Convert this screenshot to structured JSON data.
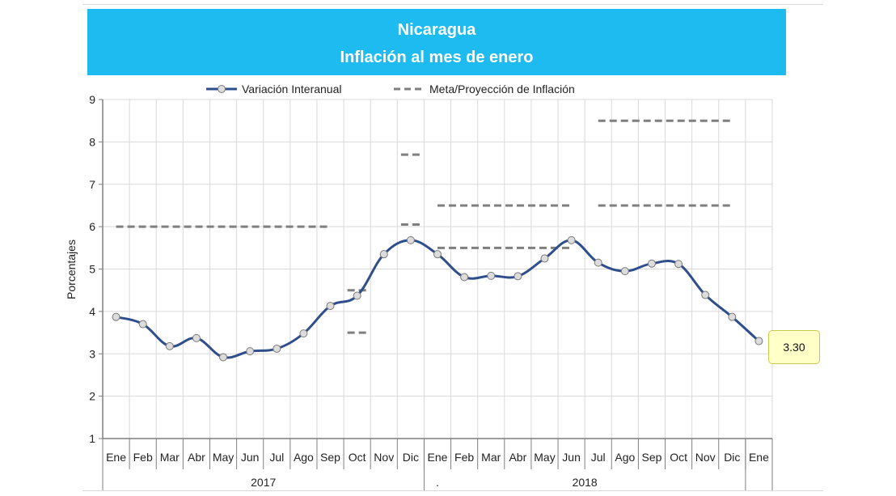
{
  "header": {
    "title": "Nicaragua",
    "subtitle": "Inflación al mes de enero"
  },
  "colors": {
    "title_bg": "#1ebbf0",
    "series": "#2f4e8c",
    "target": "#7f7f7f",
    "callout_bg": "#ffffc8"
  },
  "chart_data": {
    "type": "line",
    "ylabel": "Porcentajes",
    "ylim": [
      1,
      9
    ],
    "yticks": [
      1,
      2,
      3,
      4,
      5,
      6,
      7,
      8,
      9
    ],
    "grid": true,
    "legend_position": "top",
    "categories": [
      "Ene",
      "Feb",
      "Mar",
      "Abr",
      "May",
      "Jun",
      "Jul",
      "Ago",
      "Sep",
      "Oct",
      "Nov",
      "Dic",
      "Ene",
      "Feb",
      "Mar",
      "Abr",
      "May",
      "Jun",
      "Jul",
      "Ago",
      "Sep",
      "Oct",
      "Nov",
      "Dic",
      "Ene"
    ],
    "year_groups": [
      {
        "label": "2017",
        "start": 0,
        "end": 11
      },
      {
        "label": "2018",
        "start": 12,
        "end": 23
      },
      {
        "label": "",
        "start": 24,
        "end": 24
      }
    ],
    "stray_mark": ".",
    "series": [
      {
        "name": "Variación Interanual",
        "values": [
          3.87,
          3.7,
          3.18,
          3.37,
          2.92,
          3.06,
          3.12,
          3.48,
          4.13,
          4.37,
          5.35,
          5.68,
          5.35,
          4.81,
          4.84,
          4.83,
          5.25,
          5.68,
          5.15,
          4.95,
          5.13,
          5.12,
          4.39,
          3.87,
          3.3
        ]
      }
    ],
    "target_series": {
      "name": "Meta/Proyección de Inflación",
      "segments": [
        {
          "from": 0,
          "to": 8,
          "value": 6.0
        },
        {
          "from": 9,
          "to": 9,
          "value": 4.5
        },
        {
          "from": 9,
          "to": 9,
          "value": 3.5
        },
        {
          "from": 11,
          "to": 11,
          "value": 7.7
        },
        {
          "from": 11,
          "to": 11,
          "value": 6.05
        },
        {
          "from": 12,
          "to": 17,
          "value": 6.5
        },
        {
          "from": 12,
          "to": 17,
          "value": 5.5
        },
        {
          "from": 18,
          "to": 23,
          "value": 8.5
        },
        {
          "from": 18,
          "to": 23,
          "value": 6.5
        }
      ]
    },
    "annotation": {
      "label": "3.30",
      "index": 24
    }
  }
}
